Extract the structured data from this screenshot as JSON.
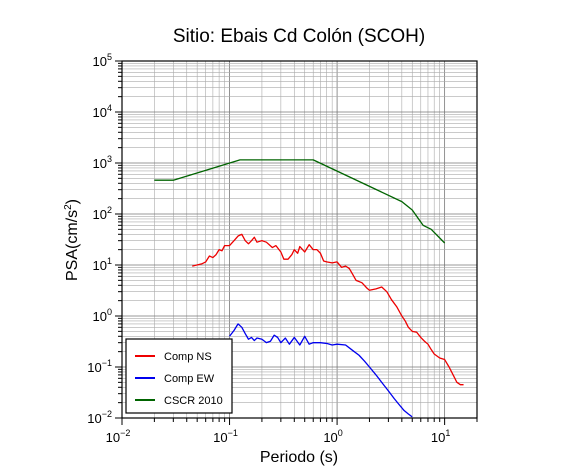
{
  "chart_data": {
    "type": "line",
    "title": "Sitio: Ebais Cd Colón (SCOH)",
    "xlabel": "Periodo (s)",
    "ylabel": "PSA(cm/s2)",
    "xscale": "log",
    "yscale": "log",
    "xlim": [
      0.01,
      20
    ],
    "ylim": [
      0.01,
      100000
    ],
    "x_ticks": [
      {
        "base": "10",
        "exp": "−2",
        "value": 0.01
      },
      {
        "base": "10",
        "exp": "−1",
        "value": 0.1
      },
      {
        "base": "10",
        "exp": "0",
        "value": 1
      },
      {
        "base": "10",
        "exp": "1",
        "value": 10
      }
    ],
    "y_ticks": [
      {
        "base": "10",
        "exp": "−2",
        "value": 0.01
      },
      {
        "base": "10",
        "exp": "−1",
        "value": 0.1
      },
      {
        "base": "10",
        "exp": "0",
        "value": 1
      },
      {
        "base": "10",
        "exp": "1",
        "value": 10
      },
      {
        "base": "10",
        "exp": "2",
        "value": 100
      },
      {
        "base": "10",
        "exp": "3",
        "value": 1000
      },
      {
        "base": "10",
        "exp": "4",
        "value": 10000
      },
      {
        "base": "10",
        "exp": "5",
        "value": 100000
      }
    ],
    "grid": true,
    "legend_position": "bottom-left",
    "series": [
      {
        "name": "Comp NS",
        "color": "#ee0000",
        "points": [
          [
            0.045,
            9.5
          ],
          [
            0.055,
            10.5
          ],
          [
            0.06,
            11.5
          ],
          [
            0.065,
            15
          ],
          [
            0.07,
            14
          ],
          [
            0.075,
            16
          ],
          [
            0.08,
            20
          ],
          [
            0.085,
            19
          ],
          [
            0.09,
            24
          ],
          [
            0.1,
            24
          ],
          [
            0.11,
            30
          ],
          [
            0.12,
            37
          ],
          [
            0.13,
            40
          ],
          [
            0.14,
            30
          ],
          [
            0.15,
            26
          ],
          [
            0.16,
            30
          ],
          [
            0.17,
            35
          ],
          [
            0.18,
            28
          ],
          [
            0.2,
            30
          ],
          [
            0.22,
            28
          ],
          [
            0.25,
            22
          ],
          [
            0.27,
            24
          ],
          [
            0.3,
            18
          ],
          [
            0.32,
            13
          ],
          [
            0.35,
            13
          ],
          [
            0.38,
            16
          ],
          [
            0.4,
            20
          ],
          [
            0.43,
            17
          ],
          [
            0.45,
            23
          ],
          [
            0.5,
            18
          ],
          [
            0.55,
            25
          ],
          [
            0.6,
            20
          ],
          [
            0.65,
            20
          ],
          [
            0.7,
            17
          ],
          [
            0.75,
            12
          ],
          [
            0.8,
            11.5
          ],
          [
            0.9,
            11
          ],
          [
            1.0,
            11.5
          ],
          [
            1.1,
            9
          ],
          [
            1.2,
            9.5
          ],
          [
            1.3,
            8.5
          ],
          [
            1.4,
            6.5
          ],
          [
            1.5,
            5
          ],
          [
            1.7,
            4.5
          ],
          [
            1.9,
            3.5
          ],
          [
            2.0,
            3.2
          ],
          [
            2.3,
            3.4
          ],
          [
            2.6,
            3.7
          ],
          [
            2.9,
            3.0
          ],
          [
            3.2,
            2.1
          ],
          [
            3.6,
            1.5
          ],
          [
            4.0,
            1.0
          ],
          [
            4.3,
            0.8
          ],
          [
            4.6,
            0.6
          ],
          [
            5.0,
            0.5
          ],
          [
            5.5,
            0.48
          ],
          [
            6.0,
            0.38
          ],
          [
            6.5,
            0.32
          ],
          [
            7.0,
            0.28
          ],
          [
            7.5,
            0.22
          ],
          [
            8.0,
            0.18
          ],
          [
            9.0,
            0.15
          ],
          [
            10.0,
            0.14
          ],
          [
            11.0,
            0.1
          ],
          [
            12.0,
            0.07
          ],
          [
            13.0,
            0.05
          ],
          [
            14.0,
            0.045
          ],
          [
            15.0,
            0.045
          ]
        ]
      },
      {
        "name": "Comp EW",
        "color": "#0000ee",
        "points": [
          [
            0.1,
            0.4
          ],
          [
            0.11,
            0.52
          ],
          [
            0.12,
            0.7
          ],
          [
            0.13,
            0.6
          ],
          [
            0.14,
            0.45
          ],
          [
            0.15,
            0.35
          ],
          [
            0.16,
            0.38
          ],
          [
            0.17,
            0.33
          ],
          [
            0.18,
            0.37
          ],
          [
            0.2,
            0.35
          ],
          [
            0.22,
            0.3
          ],
          [
            0.24,
            0.32
          ],
          [
            0.26,
            0.42
          ],
          [
            0.28,
            0.38
          ],
          [
            0.3,
            0.3
          ],
          [
            0.33,
            0.37
          ],
          [
            0.36,
            0.28
          ],
          [
            0.4,
            0.38
          ],
          [
            0.45,
            0.27
          ],
          [
            0.5,
            0.4
          ],
          [
            0.55,
            0.28
          ],
          [
            0.6,
            0.3
          ],
          [
            0.7,
            0.3
          ],
          [
            0.8,
            0.29
          ],
          [
            0.9,
            0.27
          ],
          [
            1.0,
            0.28
          ],
          [
            1.2,
            0.27
          ],
          [
            1.4,
            0.21
          ],
          [
            1.6,
            0.17
          ],
          [
            1.8,
            0.13
          ],
          [
            2.0,
            0.1
          ],
          [
            2.3,
            0.07
          ],
          [
            2.6,
            0.05
          ],
          [
            3.0,
            0.034
          ],
          [
            3.4,
            0.024
          ],
          [
            3.8,
            0.018
          ],
          [
            4.2,
            0.014
          ],
          [
            4.6,
            0.012
          ],
          [
            5.0,
            0.0105
          ]
        ]
      },
      {
        "name": "CSCR 2010",
        "color": "#006400",
        "points": [
          [
            0.02,
            460
          ],
          [
            0.03,
            460
          ],
          [
            0.125,
            1150
          ],
          [
            0.6,
            1150
          ],
          [
            4.0,
            175
          ],
          [
            5.0,
            120
          ],
          [
            6.3,
            60
          ],
          [
            7.5,
            50
          ],
          [
            10.0,
            27
          ]
        ]
      }
    ]
  }
}
